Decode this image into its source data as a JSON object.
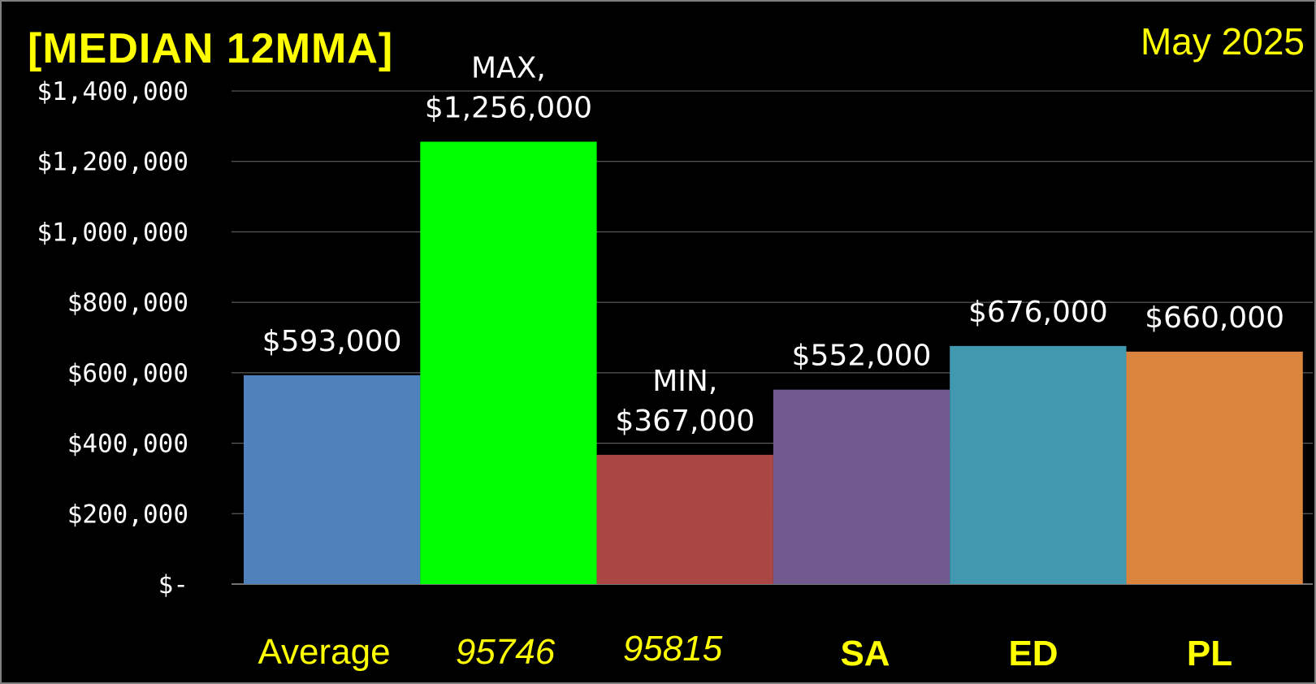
{
  "title": "[MEDIAN 12MMA]",
  "date": "May 2025",
  "chart_data": {
    "type": "bar",
    "title": "[MEDIAN 12MMA]",
    "categories": [
      "Average",
      "95746",
      "95815",
      "SA",
      "ED",
      "PL"
    ],
    "values": [
      593000,
      1256000,
      367000,
      552000,
      676000,
      660000
    ],
    "data_labels": [
      [
        "$593,000"
      ],
      [
        "MAX,",
        "$1,256,000"
      ],
      [
        "MIN,",
        "$367,000"
      ],
      [
        "$552,000"
      ],
      [
        "$676,000"
      ],
      [
        "$660,000"
      ]
    ],
    "colors": [
      "#4f81bd",
      "#00ff00",
      "#aa4644",
      "#71588f",
      "#4198af",
      "#db843d"
    ],
    "category_styles": [
      "normal",
      "italic",
      "italic",
      "bold",
      "bold",
      "bold"
    ],
    "ylim": [
      0,
      1400000
    ],
    "yticks": [
      0,
      200000,
      400000,
      600000,
      800000,
      1000000,
      1200000,
      1400000
    ],
    "ytick_labels": [
      "$-",
      "$200,000",
      "$400,000",
      "$600,000",
      "$800,000",
      "$1,000,000",
      "$1,200,000",
      "$1,400,000"
    ],
    "grid": true,
    "legend": "none",
    "background": "#000000",
    "text_color": "#ffffff",
    "category_color": "#ffff00"
  }
}
